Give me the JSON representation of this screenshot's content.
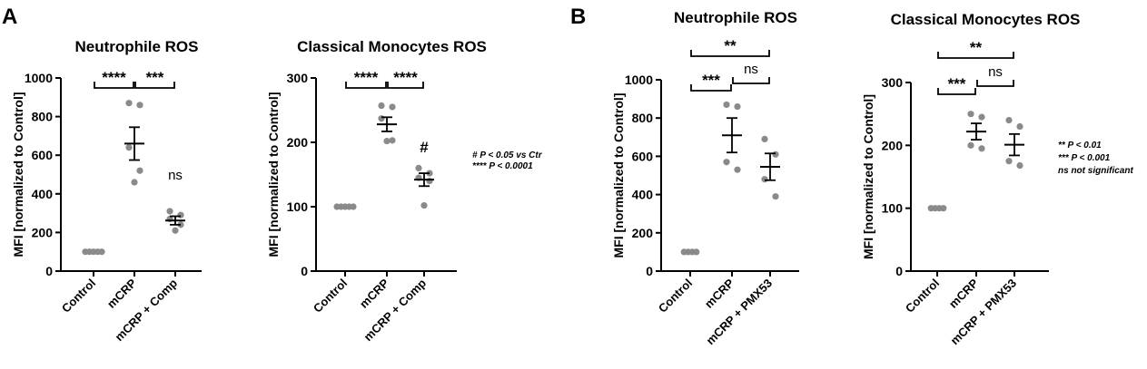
{
  "panels": [
    {
      "letter": "A"
    },
    {
      "letter": "B"
    }
  ],
  "legends": [
    {
      "lines": [
        "# P < 0.05 vs Ctr",
        "**** P < 0.0001"
      ]
    },
    {
      "lines": [
        "** P < 0.01",
        "*** P < 0.001",
        "ns not significant"
      ]
    }
  ],
  "chart_data": [
    {
      "type": "scatter",
      "title": "Neutrophile ROS",
      "ylabel": "MFI [normalized to Control]",
      "ylim": [
        0,
        1000
      ],
      "yticks": [
        0,
        200,
        400,
        600,
        800,
        1000
      ],
      "categories": [
        "Control",
        "mCRP",
        "mCRP + Comp"
      ],
      "points": [
        [
          100,
          100,
          100,
          100,
          100
        ],
        [
          870,
          860,
          640,
          520,
          460
        ],
        [
          310,
          290,
          270,
          240,
          210
        ]
      ],
      "mean": [
        100,
        660,
        262
      ],
      "sem": [
        0,
        85,
        22
      ],
      "annotations": [
        {
          "text": "****"
        },
        {
          "text": "***"
        },
        {
          "text": "ns"
        }
      ]
    },
    {
      "type": "scatter",
      "title": "Classical Monocytes ROS",
      "ylabel": "MFI [normalized to Control]",
      "ylim": [
        0,
        300
      ],
      "yticks": [
        0,
        100,
        200,
        300
      ],
      "categories": [
        "Control",
        "mCRP",
        "mCRP + Comp"
      ],
      "points": [
        [
          100,
          100,
          100,
          100,
          100
        ],
        [
          257,
          255,
          237,
          203,
          202
        ],
        [
          160,
          152,
          145,
          140,
          102
        ]
      ],
      "mean": [
        100,
        228,
        142
      ],
      "sem": [
        0,
        11,
        10
      ],
      "annotations": [
        {
          "text": "****"
        },
        {
          "text": "****"
        },
        {
          "text": "#"
        }
      ]
    },
    {
      "type": "scatter",
      "title": "Neutrophile ROS",
      "ylabel": "MFI [normalized to Control]",
      "ylim": [
        0,
        1000
      ],
      "yticks": [
        0,
        200,
        400,
        600,
        800,
        1000
      ],
      "categories": [
        "Control",
        "mCRP",
        "mCRP + PMX53"
      ],
      "points": [
        [
          100,
          100,
          100,
          100
        ],
        [
          870,
          860,
          570,
          530
        ],
        [
          690,
          610,
          480,
          390
        ]
      ],
      "mean": [
        100,
        710,
        545
      ],
      "sem": [
        0,
        90,
        70
      ],
      "annotations": [
        {
          "text": "**"
        },
        {
          "text": "***"
        },
        {
          "text": "ns"
        }
      ]
    },
    {
      "type": "scatter",
      "title": "Classical Monocytes ROS",
      "ylabel": "MFI [normalized to Control]",
      "ylim": [
        0,
        300
      ],
      "yticks": [
        0,
        100,
        200,
        300
      ],
      "categories": [
        "Control",
        "mCRP",
        "mCRP + PMX53"
      ],
      "points": [
        [
          100,
          100,
          100,
          100
        ],
        [
          250,
          245,
          200,
          195
        ],
        [
          240,
          230,
          175,
          168
        ]
      ],
      "mean": [
        100,
        222,
        201
      ],
      "sem": [
        0,
        13,
        17
      ],
      "annotations": [
        {
          "text": "**"
        },
        {
          "text": "***"
        },
        {
          "text": "ns"
        }
      ]
    }
  ]
}
